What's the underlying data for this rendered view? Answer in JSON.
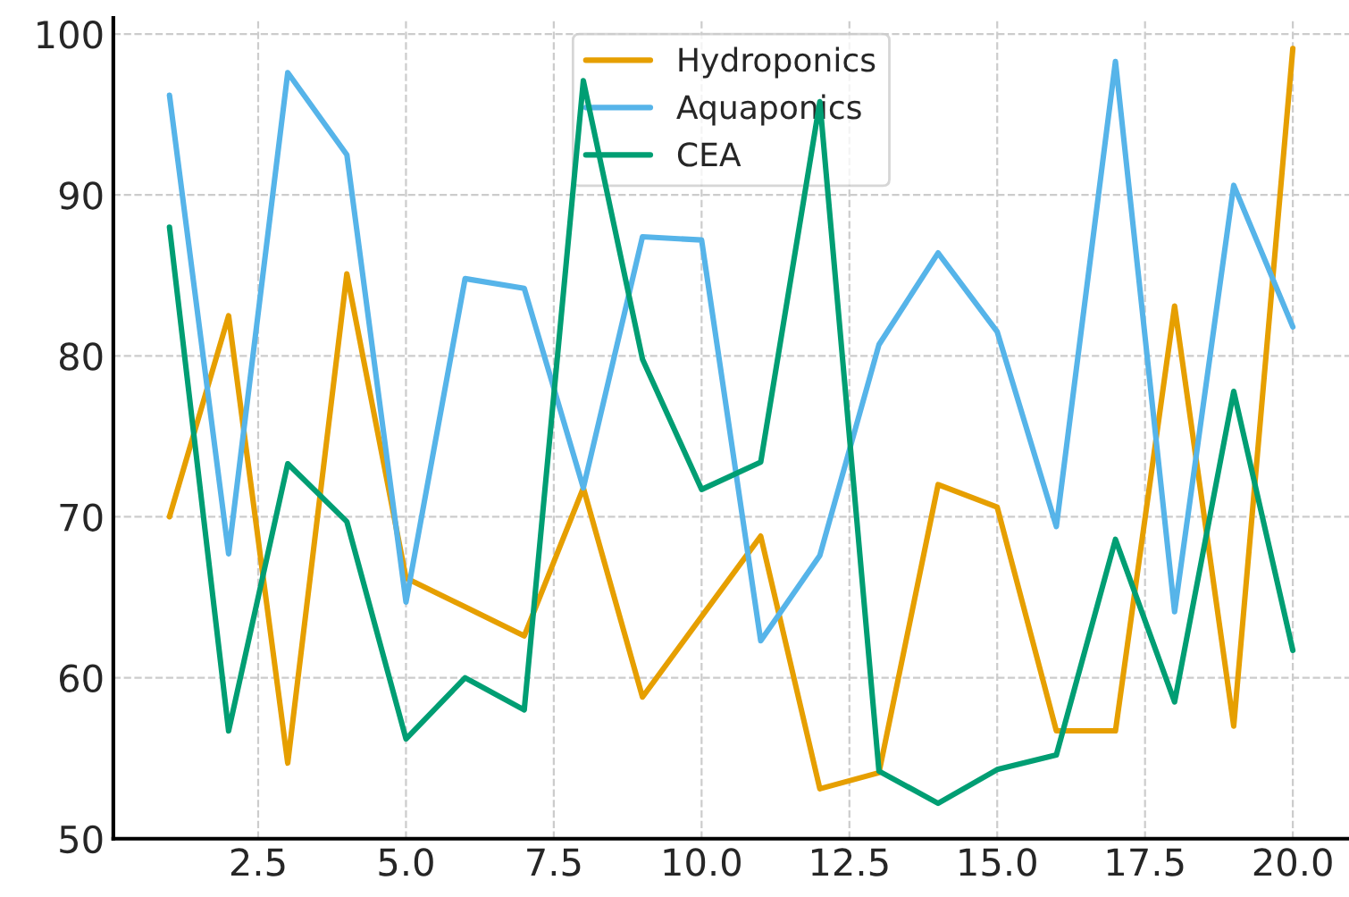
{
  "chart_data": {
    "type": "line",
    "x": [
      1,
      2,
      3,
      4,
      5,
      6,
      7,
      8,
      9,
      10,
      11,
      12,
      13,
      14,
      15,
      16,
      17,
      18,
      19,
      20
    ],
    "series": [
      {
        "name": "Hydroponics",
        "color": "#e69f00",
        "values": [
          70.0,
          82.5,
          54.7,
          85.1,
          66.2,
          64.4,
          62.6,
          71.8,
          58.8,
          63.8,
          68.8,
          53.1,
          54.1,
          72.0,
          70.6,
          56.7,
          56.7,
          83.1,
          57.0,
          99.1
        ]
      },
      {
        "name": "Aquaponics",
        "color": "#56b4e9",
        "values": [
          96.2,
          67.7,
          97.6,
          92.5,
          64.7,
          84.8,
          84.2,
          71.8,
          87.4,
          87.2,
          62.3,
          67.6,
          80.7,
          86.4,
          81.5,
          69.4,
          98.3,
          64.1,
          90.6,
          81.8
        ]
      },
      {
        "name": "CEA",
        "color": "#009e73",
        "values": [
          88.0,
          56.7,
          73.3,
          69.7,
          56.2,
          60.0,
          58.0,
          97.1,
          79.8,
          71.7,
          73.4,
          95.8,
          54.2,
          52.2,
          54.3,
          55.2,
          68.6,
          58.5,
          77.8,
          61.7
        ]
      }
    ],
    "xlim": [
      0.05,
      20.95
    ],
    "ylim": [
      50,
      101
    ],
    "xticks": [
      {
        "value": 2.5,
        "label": "2.5"
      },
      {
        "value": 5,
        "label": "5.0"
      },
      {
        "value": 7.5,
        "label": "7.5"
      },
      {
        "value": 10,
        "label": "10.0"
      },
      {
        "value": 12.5,
        "label": "12.5"
      },
      {
        "value": 15,
        "label": "15.0"
      },
      {
        "value": 17.5,
        "label": "17.5"
      },
      {
        "value": 20,
        "label": "20.0"
      }
    ],
    "yticks": [
      50,
      60,
      70,
      80,
      90,
      100
    ],
    "grid": true,
    "legend": "top",
    "line_style": "solid",
    "marker": "none"
  }
}
